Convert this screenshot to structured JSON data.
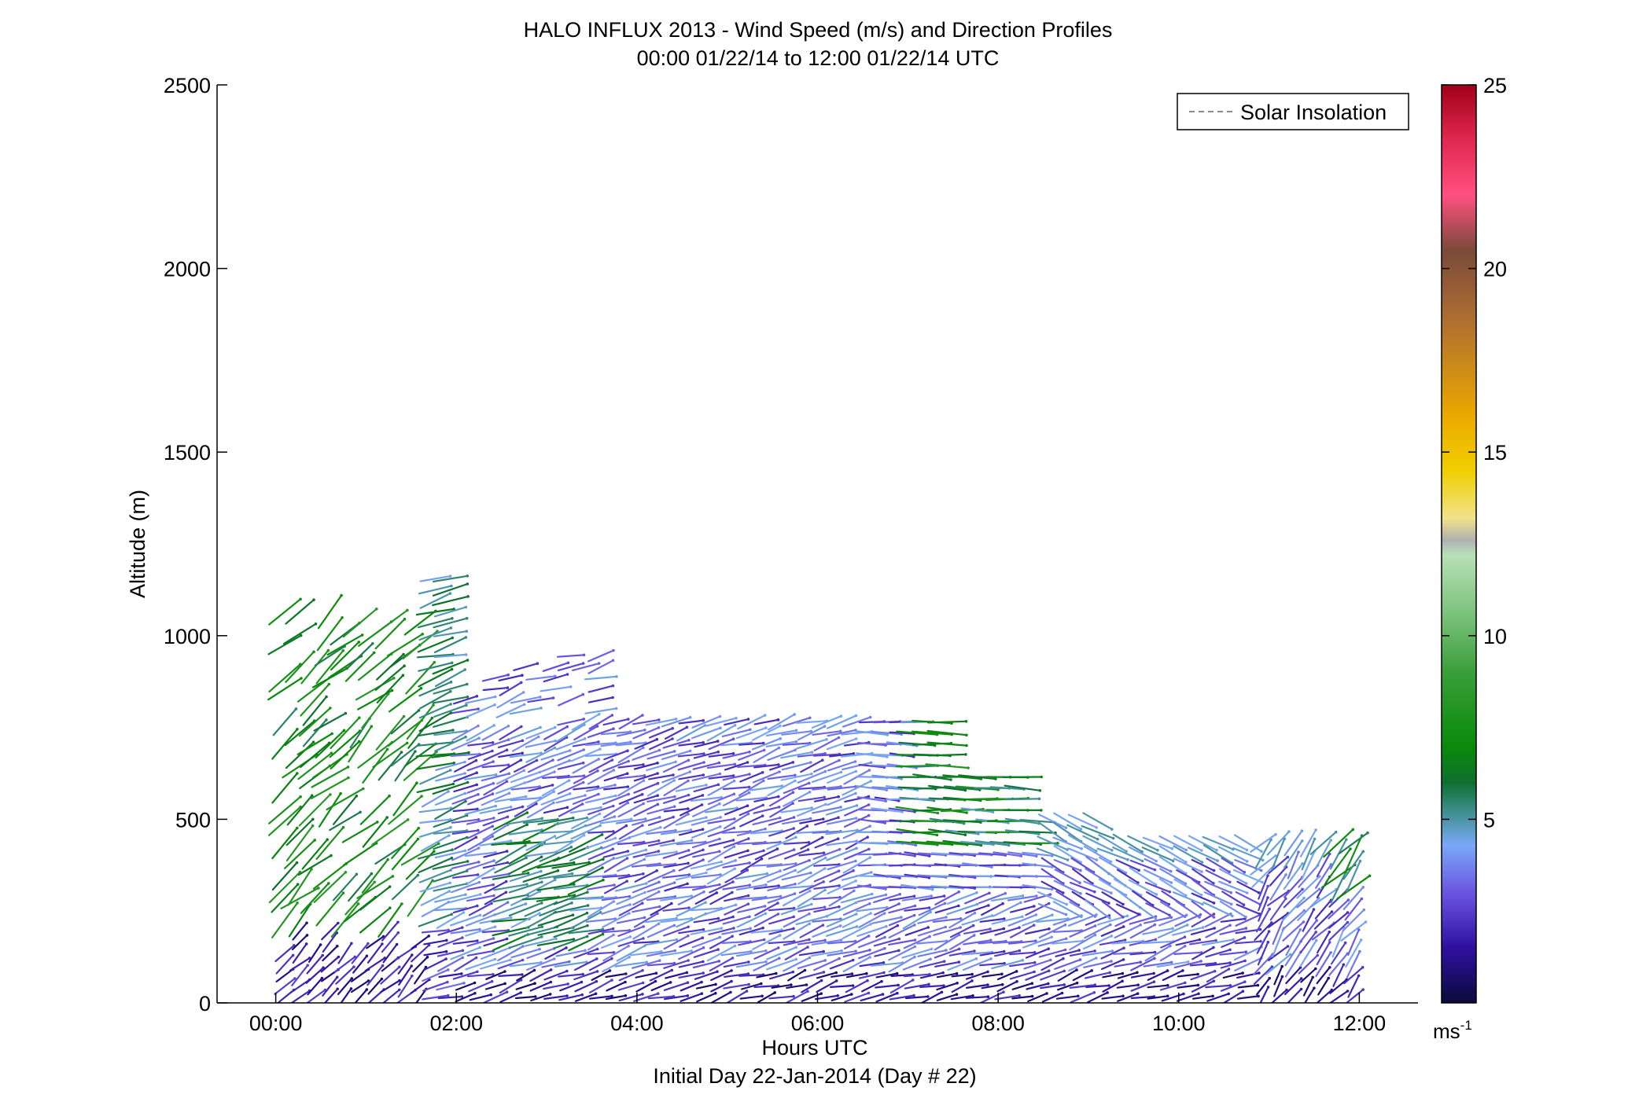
{
  "chart_data": {
    "type": "wind-barb-profile",
    "title": "HALO INFLUX 2013 - Wind Speed (m/s) and Direction Profiles",
    "subtitle": "00:00 01/22/14 to 12:00 01/22/14  UTC",
    "xlabel": "Hours UTC",
    "xlabel2": "Initial Day 22-Jan-2014 (Day # 22)",
    "ylabel": "Altitude (m)",
    "xlim": [
      -0.65,
      12.65
    ],
    "ylim": [
      0,
      2500
    ],
    "x_ticks": [
      0,
      2,
      4,
      6,
      8,
      10,
      12
    ],
    "x_tick_labels": [
      "00:00",
      "02:00",
      "04:00",
      "06:00",
      "08:00",
      "10:00",
      "12:00"
    ],
    "y_ticks": [
      0,
      500,
      1000,
      1500,
      2000,
      2500
    ],
    "y_tick_labels": [
      "0",
      "500",
      "1000",
      "1500",
      "2000",
      "2500"
    ],
    "legend": {
      "label": "Solar Insolation",
      "placement": "top-right",
      "line_color": "#8c8c8c"
    },
    "colorbar": {
      "label_base": "ms",
      "label_exp": "-1",
      "range": [
        0,
        25
      ],
      "ticks": [
        5,
        10,
        15,
        20,
        25
      ],
      "tick_labels": [
        "5",
        "10",
        "15",
        "20",
        "25"
      ],
      "stops": [
        {
          "v": 0,
          "c": "#0b0b3a"
        },
        {
          "v": 1.5,
          "c": "#2e10a0"
        },
        {
          "v": 3,
          "c": "#6a55e0"
        },
        {
          "v": 4.3,
          "c": "#7aa8f6"
        },
        {
          "v": 5.2,
          "c": "#3f8f8f"
        },
        {
          "v": 6,
          "c": "#0f6f30"
        },
        {
          "v": 7,
          "c": "#0a8a0a"
        },
        {
          "v": 9,
          "c": "#3a9e3a"
        },
        {
          "v": 10.5,
          "c": "#78c078"
        },
        {
          "v": 12.2,
          "c": "#b8e0b8"
        },
        {
          "v": 12.6,
          "c": "#b0b0b0"
        },
        {
          "v": 13.2,
          "c": "#f2e28a"
        },
        {
          "v": 14.5,
          "c": "#f0cf00"
        },
        {
          "v": 16,
          "c": "#eaa800"
        },
        {
          "v": 18.5,
          "c": "#b07030"
        },
        {
          "v": 20.5,
          "c": "#7a4a3a"
        },
        {
          "v": 22,
          "c": "#ff5080"
        },
        {
          "v": 23.5,
          "c": "#e02850"
        },
        {
          "v": 25,
          "c": "#a00018"
        }
      ]
    },
    "vectors": {
      "time_range": [
        0.1,
        12.0
      ],
      "time_step_hours": 0.1667,
      "altitude_step_m": 30,
      "speed_range_ms": [
        0.5,
        8.5
      ],
      "note": "Vectors span 0-1180 m; tops of profiles vary in time: ~1180 m near 02:00, ~750 m at 04:00-07:30, ~600 m near 08:00, ~450 m after 09:00. Speeds mostly 1-5 m/s (dark blue to light blue), with 6-9 m/s (green) aloft before 02:00 and near 08:30 at 500 m."
    }
  }
}
